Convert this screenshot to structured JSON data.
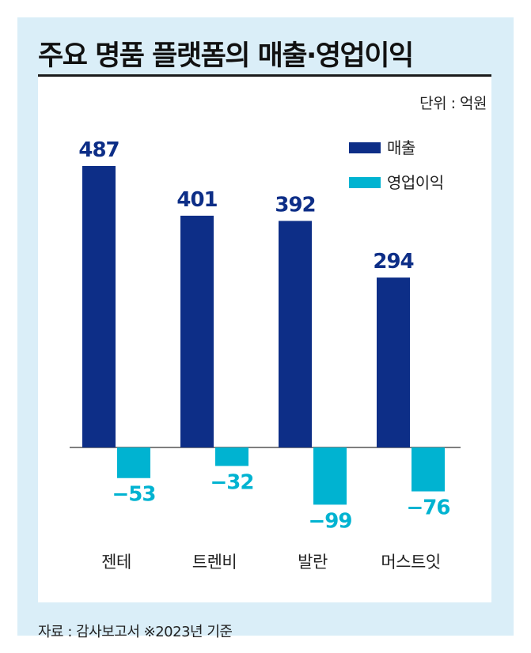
{
  "title": "주요 명품 플랫폼의 매출·영업이익",
  "unit": "단위 : 억원",
  "source": "자료 : 감사보고서 ※2023년 기준",
  "colors": {
    "revenue": "#0d2e87",
    "profit": "#00b3d1",
    "background": "#daeef8"
  },
  "chart_data": {
    "type": "bar",
    "categories": [
      "젠테",
      "트렌비",
      "발란",
      "머스트잇"
    ],
    "series": [
      {
        "name": "매출",
        "values": [
          487,
          401,
          392,
          294
        ],
        "labels": [
          "487",
          "401",
          "392",
          "294"
        ]
      },
      {
        "name": "영업이익",
        "values": [
          -53,
          -32,
          -99,
          -76
        ],
        "labels": [
          "−53",
          "−32",
          "−99",
          "−76"
        ]
      }
    ],
    "legend_position": "top-right",
    "grid": false
  }
}
